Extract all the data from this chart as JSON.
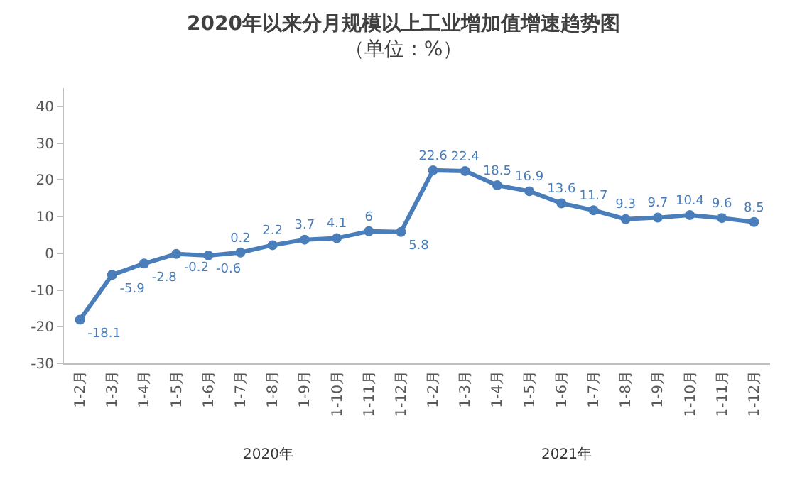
{
  "chart_data": {
    "type": "line",
    "title": "2020年以来分月规模以上工业增加值增速趋势图",
    "subtitle": "（单位：%）",
    "categories": [
      "1-2月",
      "1-3月",
      "1-4月",
      "1-5月",
      "1-6月",
      "1-7月",
      "1-8月",
      "1-9月",
      "1-10月",
      "1-11月",
      "1-12月",
      "1-2月",
      "1-3月",
      "1-4月",
      "1-5月",
      "1-6月",
      "1-7月",
      "1-8月",
      "1-9月",
      "1-10月",
      "1-11月",
      "1-12月"
    ],
    "series": [
      {
        "color": "#4a7ebb",
        "values": [
          -18.1,
          -5.9,
          -2.8,
          -0.2,
          -0.6,
          0.2,
          2.2,
          3.7,
          4.1,
          6,
          5.8,
          22.6,
          22.4,
          18.5,
          16.9,
          13.6,
          11.7,
          9.3,
          9.7,
          10.4,
          9.6,
          8.5
        ]
      }
    ],
    "ylim": [
      -30,
      45
    ],
    "yticks": [
      -30,
      -20,
      -10,
      0,
      10,
      20,
      30,
      40
    ],
    "annotations": [
      "2020年",
      "2021年"
    ],
    "data_labels": true,
    "grid": false,
    "marker": "circle",
    "line_style": "solid"
  }
}
